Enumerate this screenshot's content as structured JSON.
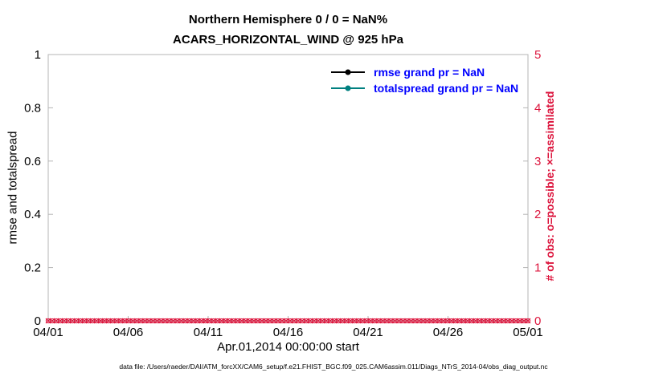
{
  "figure": {
    "title_line1": "Northern Hemisphere 0 / 0 = NaN%",
    "title_line2": "ACARS_HORIZONTAL_WIND @ 925 hPa",
    "footer": "data file: /Users/raeder/DAI/ATM_forcXX/CAM6_setup/f.e21.FHIST_BGC.f09_025.CAM6assim.011/Diags_NTrS_2014-04/obs_diag_output.nc"
  },
  "chart_data": {
    "type": "line",
    "title": "Northern Hemisphere 0 / 0 = NaN%",
    "subtitle": "ACARS_HORIZONTAL_WIND @ 925 hPa",
    "xlabel": "Apr.01,2014 00:00:00 start",
    "x_tick_labels": [
      "04/01",
      "04/06",
      "04/11",
      "04/16",
      "04/21",
      "04/26",
      "05/01"
    ],
    "left_axis": {
      "label": "rmse and totalspread",
      "ylim": [
        0,
        1
      ],
      "ticks": [
        0,
        0.2,
        0.4,
        0.6,
        0.8,
        1
      ],
      "tick_labels": [
        "0",
        "0.2",
        "0.4",
        "0.6",
        "0.8",
        "1"
      ]
    },
    "right_axis": {
      "label": "# of obs: o=possible; ×=assimilated",
      "ylim": [
        0,
        5
      ],
      "ticks": [
        0,
        1,
        2,
        3,
        4,
        5
      ],
      "tick_labels": [
        "0",
        "1",
        "2",
        "3",
        "4",
        "5"
      ]
    },
    "series": [
      {
        "name": "rmse grand pr = NaN",
        "color": "#000000",
        "values": []
      },
      {
        "name": "totalspread grand pr = NaN",
        "color": "#008080",
        "values": []
      }
    ],
    "observations": {
      "possible_marker": "o",
      "assimilated_marker": "×",
      "num_times": 120,
      "value": 0
    },
    "colors": {
      "obs": "#DC143C",
      "legend_text": "#0000FF",
      "axis_box": "#b5b5b5",
      "tick_label": "#000000"
    },
    "grid": false,
    "legend_position": "top-center-inside"
  }
}
